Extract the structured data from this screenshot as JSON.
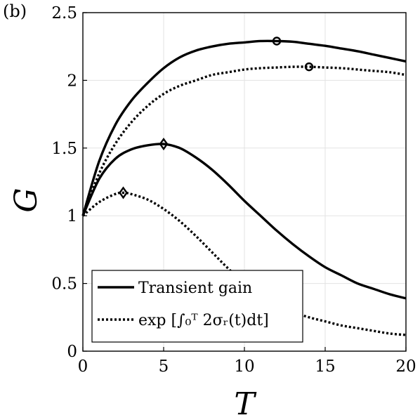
{
  "panel_label": "(b)",
  "chart_data": {
    "type": "line",
    "xlabel": "T",
    "ylabel": "G",
    "xlim": [
      0,
      20
    ],
    "ylim": [
      0,
      2.5
    ],
    "xticks": [
      0,
      5,
      10,
      15,
      20
    ],
    "yticks": [
      0,
      0.5,
      1,
      1.5,
      2,
      2.5
    ],
    "xtick_labels": [
      "0",
      "5",
      "10",
      "15",
      "20"
    ],
    "ytick_labels": [
      "0",
      "0.5",
      "1",
      "1.5",
      "2",
      "2.5"
    ],
    "grid": true,
    "legend_position": "bottom-left",
    "legend": [
      {
        "label": "Transient gain",
        "style": "solid"
      },
      {
        "label": "exp [∫₀ᵀ 2σᵣ(t)dt]",
        "style": "dotted"
      }
    ],
    "series": [
      {
        "style": "solid",
        "x": [
          0,
          1,
          2,
          3,
          4,
          5,
          6,
          7,
          8,
          9,
          10,
          11,
          12,
          13,
          14,
          15,
          16,
          17,
          18,
          19,
          20
        ],
        "values": [
          1.0,
          1.4,
          1.67,
          1.85,
          1.98,
          2.09,
          2.17,
          2.22,
          2.25,
          2.27,
          2.28,
          2.29,
          2.29,
          2.285,
          2.27,
          2.255,
          2.235,
          2.215,
          2.19,
          2.165,
          2.14
        ],
        "marker": "o",
        "marker_point": [
          12,
          2.29
        ]
      },
      {
        "style": "dotted",
        "x": [
          0,
          1,
          2,
          3,
          4,
          5,
          6,
          7,
          8,
          9,
          10,
          11,
          12,
          13,
          14,
          15,
          16,
          17,
          18,
          19,
          20
        ],
        "values": [
          1.0,
          1.31,
          1.53,
          1.69,
          1.81,
          1.9,
          1.96,
          2.0,
          2.04,
          2.06,
          2.08,
          2.09,
          2.095,
          2.1,
          2.1,
          2.095,
          2.09,
          2.08,
          2.07,
          2.06,
          2.04
        ],
        "marker": "o",
        "marker_point": [
          14,
          2.1
        ]
      },
      {
        "style": "solid",
        "x": [
          0,
          1,
          2,
          3,
          4,
          5,
          6,
          7,
          8,
          9,
          10,
          11,
          12,
          13,
          14,
          15,
          16,
          17,
          18,
          19,
          20
        ],
        "values": [
          1.0,
          1.27,
          1.42,
          1.49,
          1.52,
          1.53,
          1.5,
          1.43,
          1.34,
          1.23,
          1.11,
          1.0,
          0.89,
          0.79,
          0.7,
          0.62,
          0.56,
          0.5,
          0.46,
          0.42,
          0.39
        ],
        "marker": "d",
        "marker_point": [
          5,
          1.53
        ]
      },
      {
        "style": "dotted",
        "x": [
          0,
          1,
          2,
          2.5,
          3,
          4,
          5,
          6,
          7,
          8,
          9,
          10,
          11,
          12,
          13,
          14,
          15,
          16,
          17,
          18,
          19,
          20
        ],
        "values": [
          1.0,
          1.1,
          1.16,
          1.17,
          1.16,
          1.12,
          1.05,
          0.96,
          0.85,
          0.73,
          0.61,
          0.5,
          0.41,
          0.34,
          0.29,
          0.25,
          0.22,
          0.19,
          0.17,
          0.15,
          0.13,
          0.12
        ],
        "marker": "d",
        "marker_point": [
          2.5,
          1.17
        ]
      }
    ]
  }
}
